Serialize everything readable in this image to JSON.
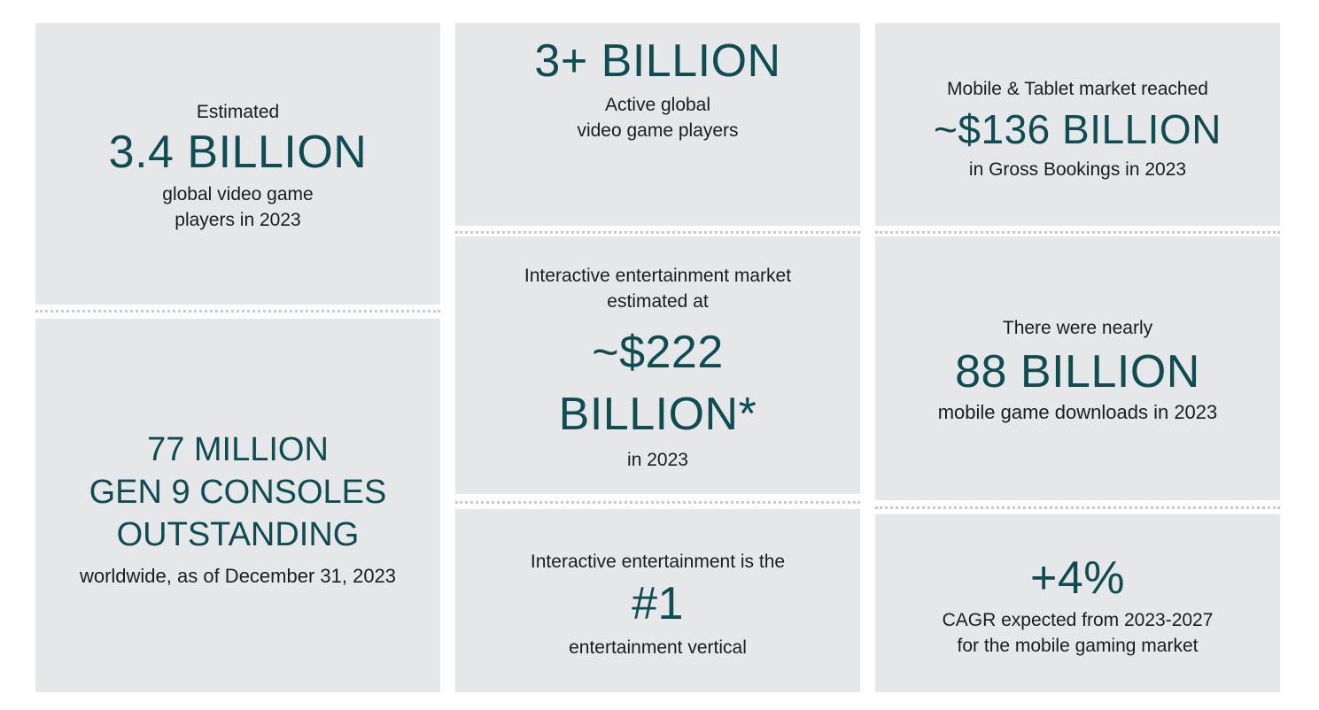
{
  "panel1": {
    "top": "Estimated",
    "big": "3.4 BILLION",
    "bottom1": "global video game",
    "bottom2": "players in 2023"
  },
  "panel2": {
    "big1": "77 MILLION",
    "big2": "GEN 9 CONSOLES",
    "big3": "OUTSTANDING",
    "bottom": "worldwide, as of December 31, 2023"
  },
  "panel3": {
    "big": "3+ BILLION",
    "bottom1": "Active global",
    "bottom2": "video game players"
  },
  "panel4": {
    "top1": "Interactive entertainment market",
    "top2": "estimated at",
    "big1": "~$222",
    "big2": "BILLION*",
    "bottom": "in 2023"
  },
  "panel5": {
    "top": "Interactive entertainment is the",
    "big": "#1",
    "bottom": "entertainment vertical"
  },
  "panel6": {
    "top": "Mobile & Tablet market reached",
    "big": "~$136 BILLION",
    "bottom": "in Gross Bookings in 2023"
  },
  "panel7": {
    "top": "There were nearly",
    "big": "88 BILLION",
    "bottom": "mobile game downloads in 2023"
  },
  "panel8": {
    "big": "+4%",
    "bottom1": "CAGR expected from 2023-2027",
    "bottom2": "for the mobile gaming market"
  }
}
